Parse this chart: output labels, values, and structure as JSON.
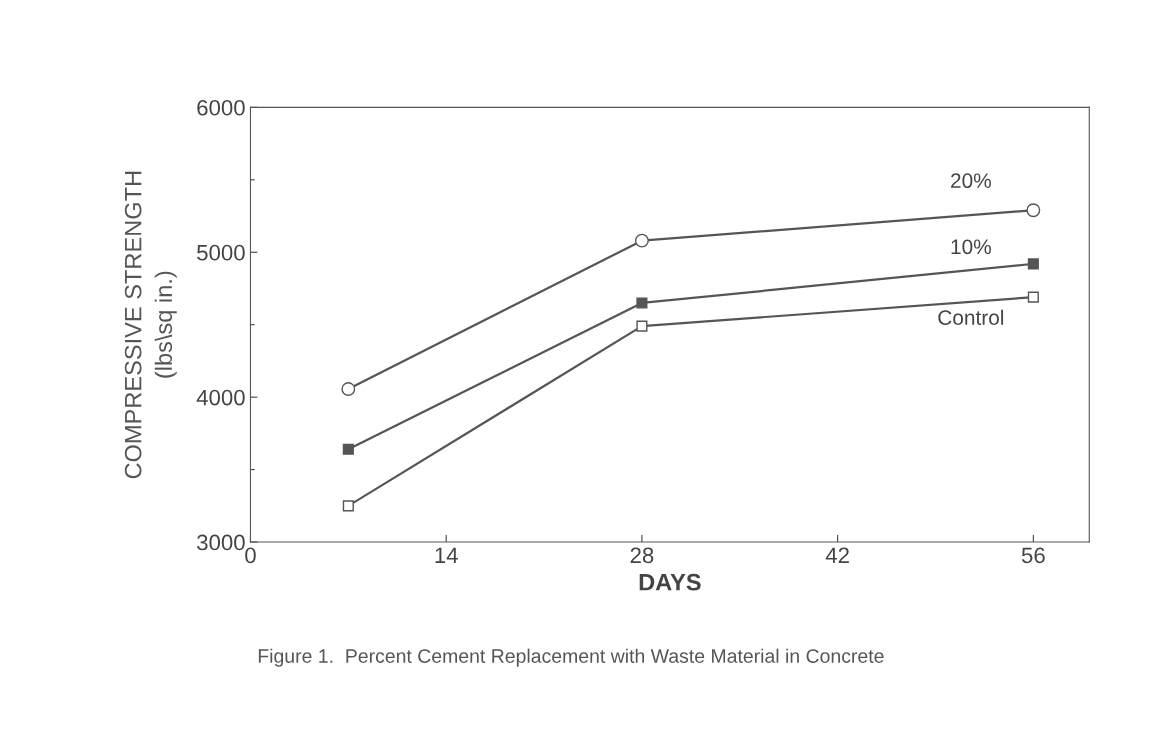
{
  "chart_data": {
    "type": "line",
    "xlabel": "DAYS",
    "ylabel": "COMPRESSIVE STRENGTH\n(lbs\\sq in.)",
    "x": [
      7,
      28,
      56
    ],
    "series": [
      {
        "name": "20%",
        "color": "#555555",
        "marker": "circle",
        "values": [
          4056,
          5080,
          5290
        ]
      },
      {
        "name": "10%",
        "color": "#555555",
        "marker": "square",
        "values": [
          3640,
          4650,
          4920
        ]
      },
      {
        "name": "Control",
        "color": "#555555",
        "marker": "square",
        "values": [
          3250,
          4490,
          4690
        ]
      }
    ],
    "xlim": [
      0,
      60
    ],
    "xticks": [
      0,
      14,
      28,
      42,
      56
    ],
    "ylim": [
      3000,
      6000
    ],
    "yticks": [
      3000,
      {
        "value": 3500,
        "label": null
      },
      4000,
      {
        "value": 4500,
        "label": null
      },
      5000,
      {
        "value": 5500,
        "label": null
      },
      6000
    ],
    "grid": false,
    "legend": false,
    "line_style": "solid",
    "annotations": [
      "Figure 1.  Percent Cement Replacement with Waste Material in Concrete"
    ]
  }
}
